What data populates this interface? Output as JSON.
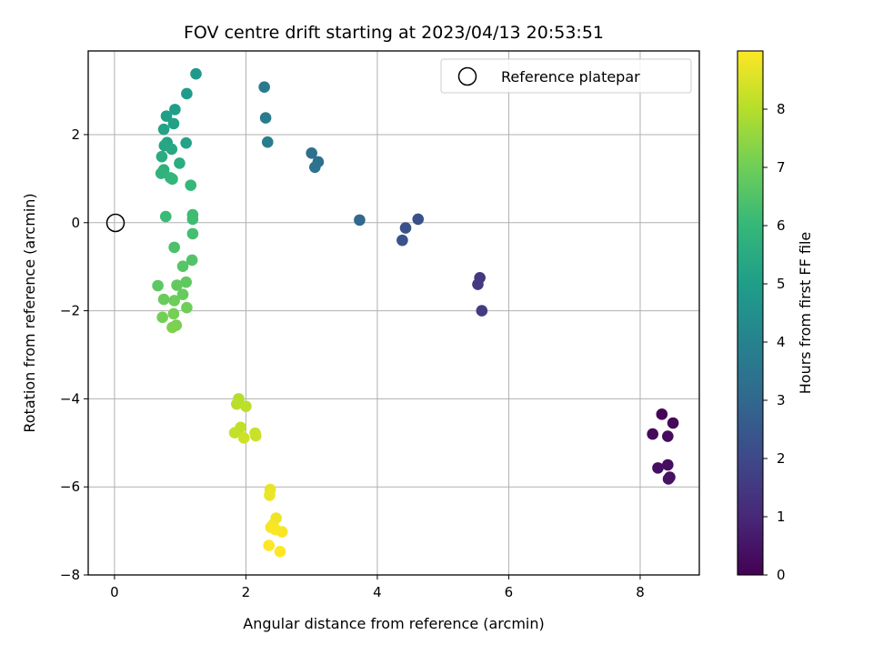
{
  "chart_data": {
    "type": "scatter",
    "title": "FOV centre drift starting at 2023/04/13 20:53:51",
    "xlabel": "Angular distance from reference (arcmin)",
    "ylabel": "Rotation from reference (arcmin)",
    "xlim": [
      -0.4,
      8.9
    ],
    "ylim": [
      -8.0,
      3.9
    ],
    "xticks": [
      0,
      2,
      4,
      6,
      8
    ],
    "xtick_labels": [
      "0",
      "2",
      "4",
      "6",
      "8"
    ],
    "yticks": [
      -8,
      -6,
      -4,
      -2,
      0,
      2
    ],
    "ytick_labels": [
      "−8",
      "−6",
      "−4",
      "−2",
      "0",
      "2"
    ],
    "grid": true,
    "legend": {
      "position": "top-right",
      "entries": [
        "Reference platepar"
      ]
    },
    "reference_point": {
      "label": "Reference platepar",
      "x": 0,
      "y": 0
    },
    "colorbar": {
      "label": "Hours from first FF file",
      "colormap": "viridis",
      "range": [
        0,
        9.0
      ],
      "ticks": [
        0,
        1,
        2,
        3,
        4,
        5,
        6,
        7,
        8
      ],
      "tick_labels": [
        "0",
        "1",
        "2",
        "3",
        "4",
        "5",
        "6",
        "7",
        "8"
      ]
    },
    "colormap_stops": [
      "#440154",
      "#482878",
      "#3e4989",
      "#31688e",
      "#26828e",
      "#1f9e89",
      "#35b779",
      "#6ece58",
      "#b5de2b",
      "#fde725"
    ],
    "points": [
      {
        "x": 8.33,
        "y": -4.35,
        "hours": 0.1
      },
      {
        "x": 8.5,
        "y": -4.55,
        "hours": 0.15
      },
      {
        "x": 8.19,
        "y": -4.8,
        "hours": 0.2
      },
      {
        "x": 8.42,
        "y": -4.85,
        "hours": 0.25
      },
      {
        "x": 8.42,
        "y": -5.5,
        "hours": 0.3
      },
      {
        "x": 8.27,
        "y": -5.57,
        "hours": 0.35
      },
      {
        "x": 8.45,
        "y": -5.78,
        "hours": 0.4
      },
      {
        "x": 8.43,
        "y": -5.82,
        "hours": 0.45
      },
      {
        "x": 5.56,
        "y": -1.25,
        "hours": 1.5
      },
      {
        "x": 5.53,
        "y": -1.4,
        "hours": 1.55
      },
      {
        "x": 5.59,
        "y": -2.0,
        "hours": 1.6
      },
      {
        "x": 4.62,
        "y": 0.08,
        "hours": 2.2
      },
      {
        "x": 4.43,
        "y": -0.12,
        "hours": 2.25
      },
      {
        "x": 4.38,
        "y": -0.4,
        "hours": 2.3
      },
      {
        "x": 3.73,
        "y": 0.06,
        "hours": 3.0
      },
      {
        "x": 3.0,
        "y": 1.58,
        "hours": 3.3
      },
      {
        "x": 3.1,
        "y": 1.38,
        "hours": 3.35
      },
      {
        "x": 3.05,
        "y": 1.26,
        "hours": 3.4
      },
      {
        "x": 2.28,
        "y": 3.08,
        "hours": 3.7
      },
      {
        "x": 2.3,
        "y": 2.38,
        "hours": 3.75
      },
      {
        "x": 2.33,
        "y": 1.83,
        "hours": 3.8
      },
      {
        "x": 1.24,
        "y": 3.38,
        "hours": 4.8
      },
      {
        "x": 1.1,
        "y": 2.93,
        "hours": 4.9
      },
      {
        "x": 0.92,
        "y": 2.57,
        "hours": 5.0
      },
      {
        "x": 0.79,
        "y": 2.42,
        "hours": 5.05
      },
      {
        "x": 0.9,
        "y": 2.25,
        "hours": 5.1
      },
      {
        "x": 0.75,
        "y": 2.12,
        "hours": 5.15
      },
      {
        "x": 1.09,
        "y": 1.81,
        "hours": 5.2
      },
      {
        "x": 0.8,
        "y": 1.82,
        "hours": 5.25
      },
      {
        "x": 0.76,
        "y": 1.75,
        "hours": 5.3
      },
      {
        "x": 0.87,
        "y": 1.67,
        "hours": 5.35
      },
      {
        "x": 0.72,
        "y": 1.5,
        "hours": 5.5
      },
      {
        "x": 0.99,
        "y": 1.35,
        "hours": 5.6
      },
      {
        "x": 0.75,
        "y": 1.2,
        "hours": 5.7
      },
      {
        "x": 0.71,
        "y": 1.12,
        "hours": 5.8
      },
      {
        "x": 0.85,
        "y": 1.02,
        "hours": 5.9
      },
      {
        "x": 0.88,
        "y": 0.99,
        "hours": 5.95
      },
      {
        "x": 1.16,
        "y": 0.85,
        "hours": 6.0
      },
      {
        "x": 0.78,
        "y": 0.14,
        "hours": 6.1
      },
      {
        "x": 1.19,
        "y": 0.18,
        "hours": 6.15
      },
      {
        "x": 1.19,
        "y": 0.08,
        "hours": 6.2
      },
      {
        "x": 1.19,
        "y": -0.25,
        "hours": 6.3
      },
      {
        "x": 0.91,
        "y": -0.56,
        "hours": 6.4
      },
      {
        "x": 1.18,
        "y": -0.85,
        "hours": 6.5
      },
      {
        "x": 1.04,
        "y": -0.99,
        "hours": 6.6
      },
      {
        "x": 0.66,
        "y": -1.43,
        "hours": 6.7
      },
      {
        "x": 1.09,
        "y": -1.35,
        "hours": 6.75
      },
      {
        "x": 0.95,
        "y": -1.42,
        "hours": 6.8
      },
      {
        "x": 1.04,
        "y": -1.63,
        "hours": 6.85
      },
      {
        "x": 0.75,
        "y": -1.74,
        "hours": 6.9
      },
      {
        "x": 0.91,
        "y": -1.77,
        "hours": 6.95
      },
      {
        "x": 1.1,
        "y": -1.93,
        "hours": 7.0
      },
      {
        "x": 0.73,
        "y": -2.15,
        "hours": 7.05
      },
      {
        "x": 0.9,
        "y": -2.07,
        "hours": 7.1
      },
      {
        "x": 0.94,
        "y": -2.33,
        "hours": 7.15
      },
      {
        "x": 0.88,
        "y": -2.38,
        "hours": 7.2
      },
      {
        "x": 1.89,
        "y": -4.0,
        "hours": 8.0
      },
      {
        "x": 1.86,
        "y": -4.12,
        "hours": 8.05
      },
      {
        "x": 2.0,
        "y": -4.17,
        "hours": 8.1
      },
      {
        "x": 1.92,
        "y": -4.65,
        "hours": 8.15
      },
      {
        "x": 1.83,
        "y": -4.77,
        "hours": 8.2
      },
      {
        "x": 2.14,
        "y": -4.78,
        "hours": 8.25
      },
      {
        "x": 2.15,
        "y": -4.84,
        "hours": 8.3
      },
      {
        "x": 1.97,
        "y": -4.89,
        "hours": 8.35
      },
      {
        "x": 2.37,
        "y": -6.06,
        "hours": 8.7
      },
      {
        "x": 2.36,
        "y": -6.19,
        "hours": 8.75
      },
      {
        "x": 2.46,
        "y": -6.71,
        "hours": 8.8
      },
      {
        "x": 2.41,
        "y": -6.86,
        "hours": 8.85
      },
      {
        "x": 2.38,
        "y": -6.92,
        "hours": 8.9
      },
      {
        "x": 2.55,
        "y": -7.02,
        "hours": 8.92
      },
      {
        "x": 2.45,
        "y": -6.97,
        "hours": 8.95
      },
      {
        "x": 2.35,
        "y": -7.33,
        "hours": 8.97
      },
      {
        "x": 2.52,
        "y": -7.47,
        "hours": 9.0
      }
    ]
  }
}
